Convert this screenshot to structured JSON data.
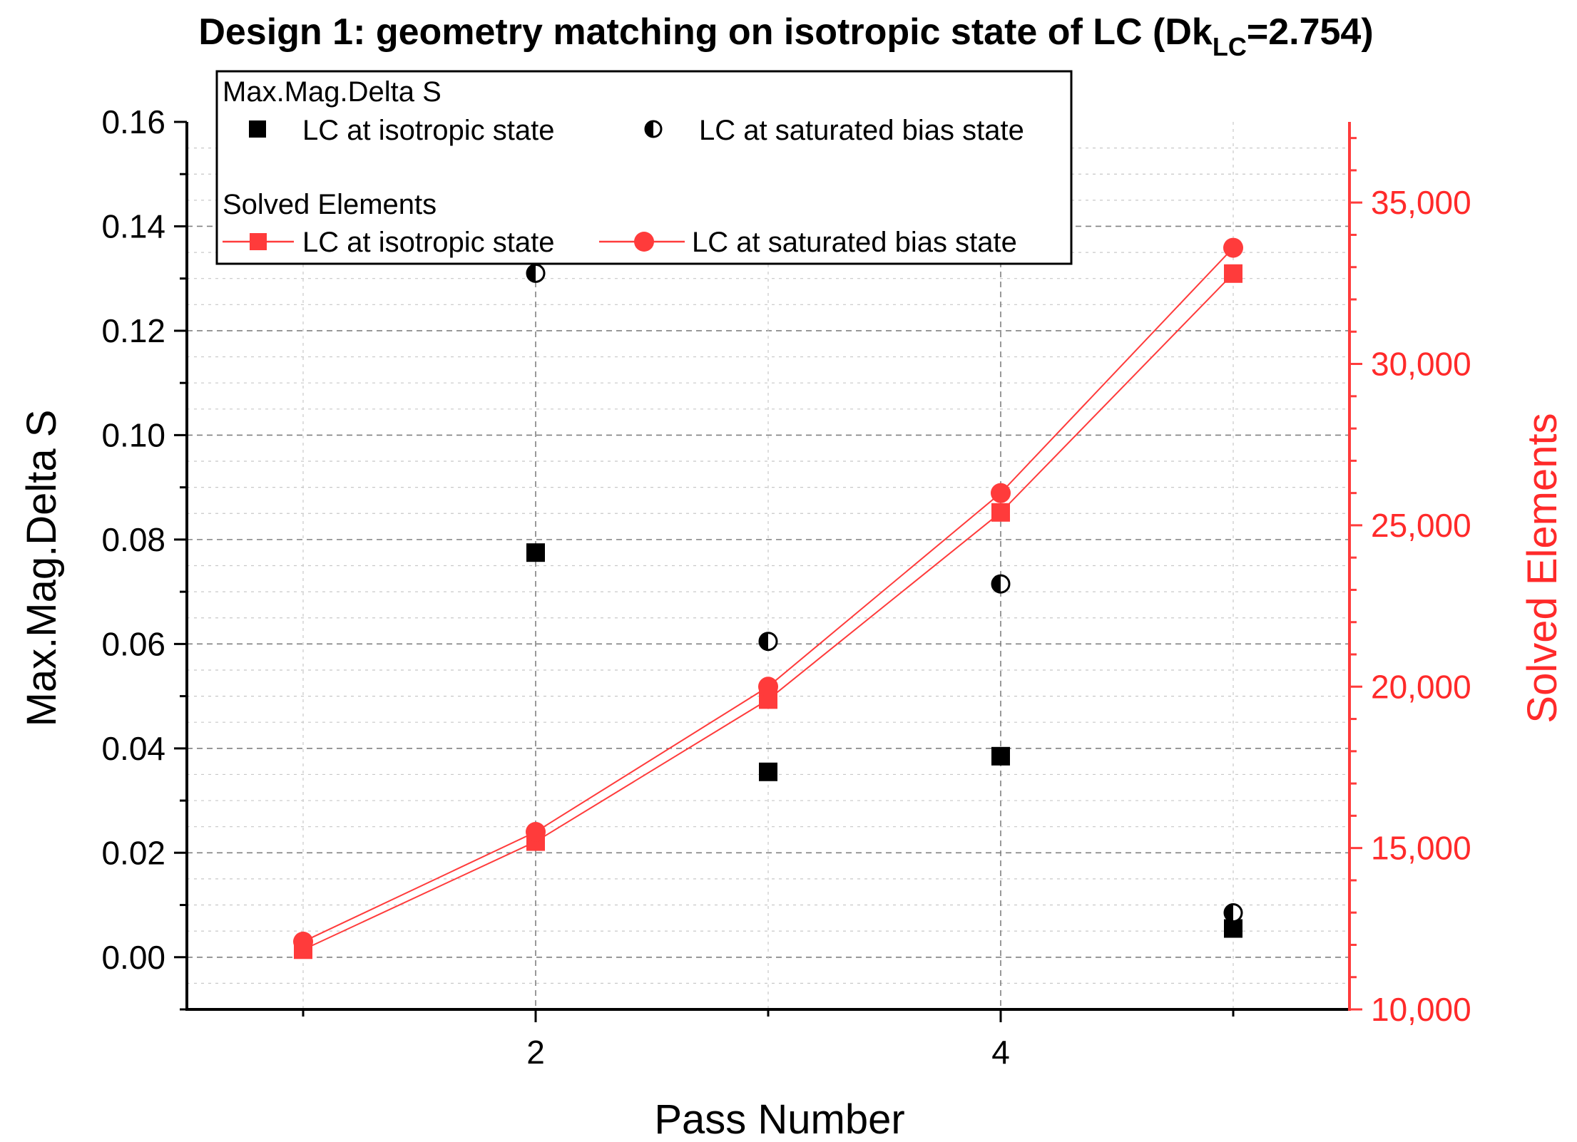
{
  "chart_data": {
    "type": "scatter",
    "title_prefix": "Design 1: geometry matching on isotropic state of LC (Dk",
    "title_sub": "LC",
    "title_suffix": "=2.754)",
    "xlabel": "Pass Number",
    "ylabel_left": "Max.Mag.Delta S",
    "ylabel_right": "Solved Elements",
    "xlim": [
      0.5,
      5.5
    ],
    "x_ticks": [
      2,
      4
    ],
    "x_tick_labels": [
      "2",
      "4"
    ],
    "ylim_left": [
      -0.01,
      0.16
    ],
    "y_ticks_left": [
      0.0,
      0.02,
      0.04,
      0.06,
      0.08,
      0.1,
      0.12,
      0.14,
      0.16
    ],
    "y_tick_labels_left": [
      "0.00",
      "0.02",
      "0.04",
      "0.06",
      "0.08",
      "0.10",
      "0.12",
      "0.14",
      "0.16"
    ],
    "ylim_right": [
      10000,
      37500
    ],
    "y_ticks_right": [
      10000,
      15000,
      20000,
      25000,
      30000,
      35000
    ],
    "y_tick_labels_right": [
      "10,000",
      "15,000",
      "20,000",
      "25,000",
      "30,000",
      "35,000"
    ],
    "legend_group1_title": "Max.Mag.Delta S",
    "legend_group2_title": "Solved Elements",
    "series": [
      {
        "name": "LC at isotropic state",
        "group": "Max.Mag.Delta S",
        "axis": "left",
        "marker": "square",
        "color": "#000000",
        "x": [
          2,
          3,
          4,
          5
        ],
        "values": [
          0.0775,
          0.0355,
          0.0385,
          0.0055
        ]
      },
      {
        "name": "LC at saturated bias state",
        "group": "Max.Mag.Delta S",
        "axis": "left",
        "marker": "half-circle",
        "color": "#000000",
        "x": [
          2,
          3,
          4,
          5
        ],
        "values": [
          0.131,
          0.0605,
          0.0715,
          0.0085
        ]
      },
      {
        "name": "LC at isotropic state",
        "group": "Solved Elements",
        "axis": "right",
        "marker": "square-line",
        "color": "#ff3b3b",
        "x": [
          1,
          2,
          3,
          4,
          5
        ],
        "values": [
          11850,
          15200,
          19600,
          25400,
          32800
        ]
      },
      {
        "name": "LC at saturated bias state",
        "group": "Solved Elements",
        "axis": "right",
        "marker": "circle-line",
        "color": "#ff3b3b",
        "x": [
          1,
          2,
          3,
          4,
          5
        ],
        "values": [
          12100,
          15500,
          20000,
          26000,
          33600
        ]
      }
    ]
  }
}
